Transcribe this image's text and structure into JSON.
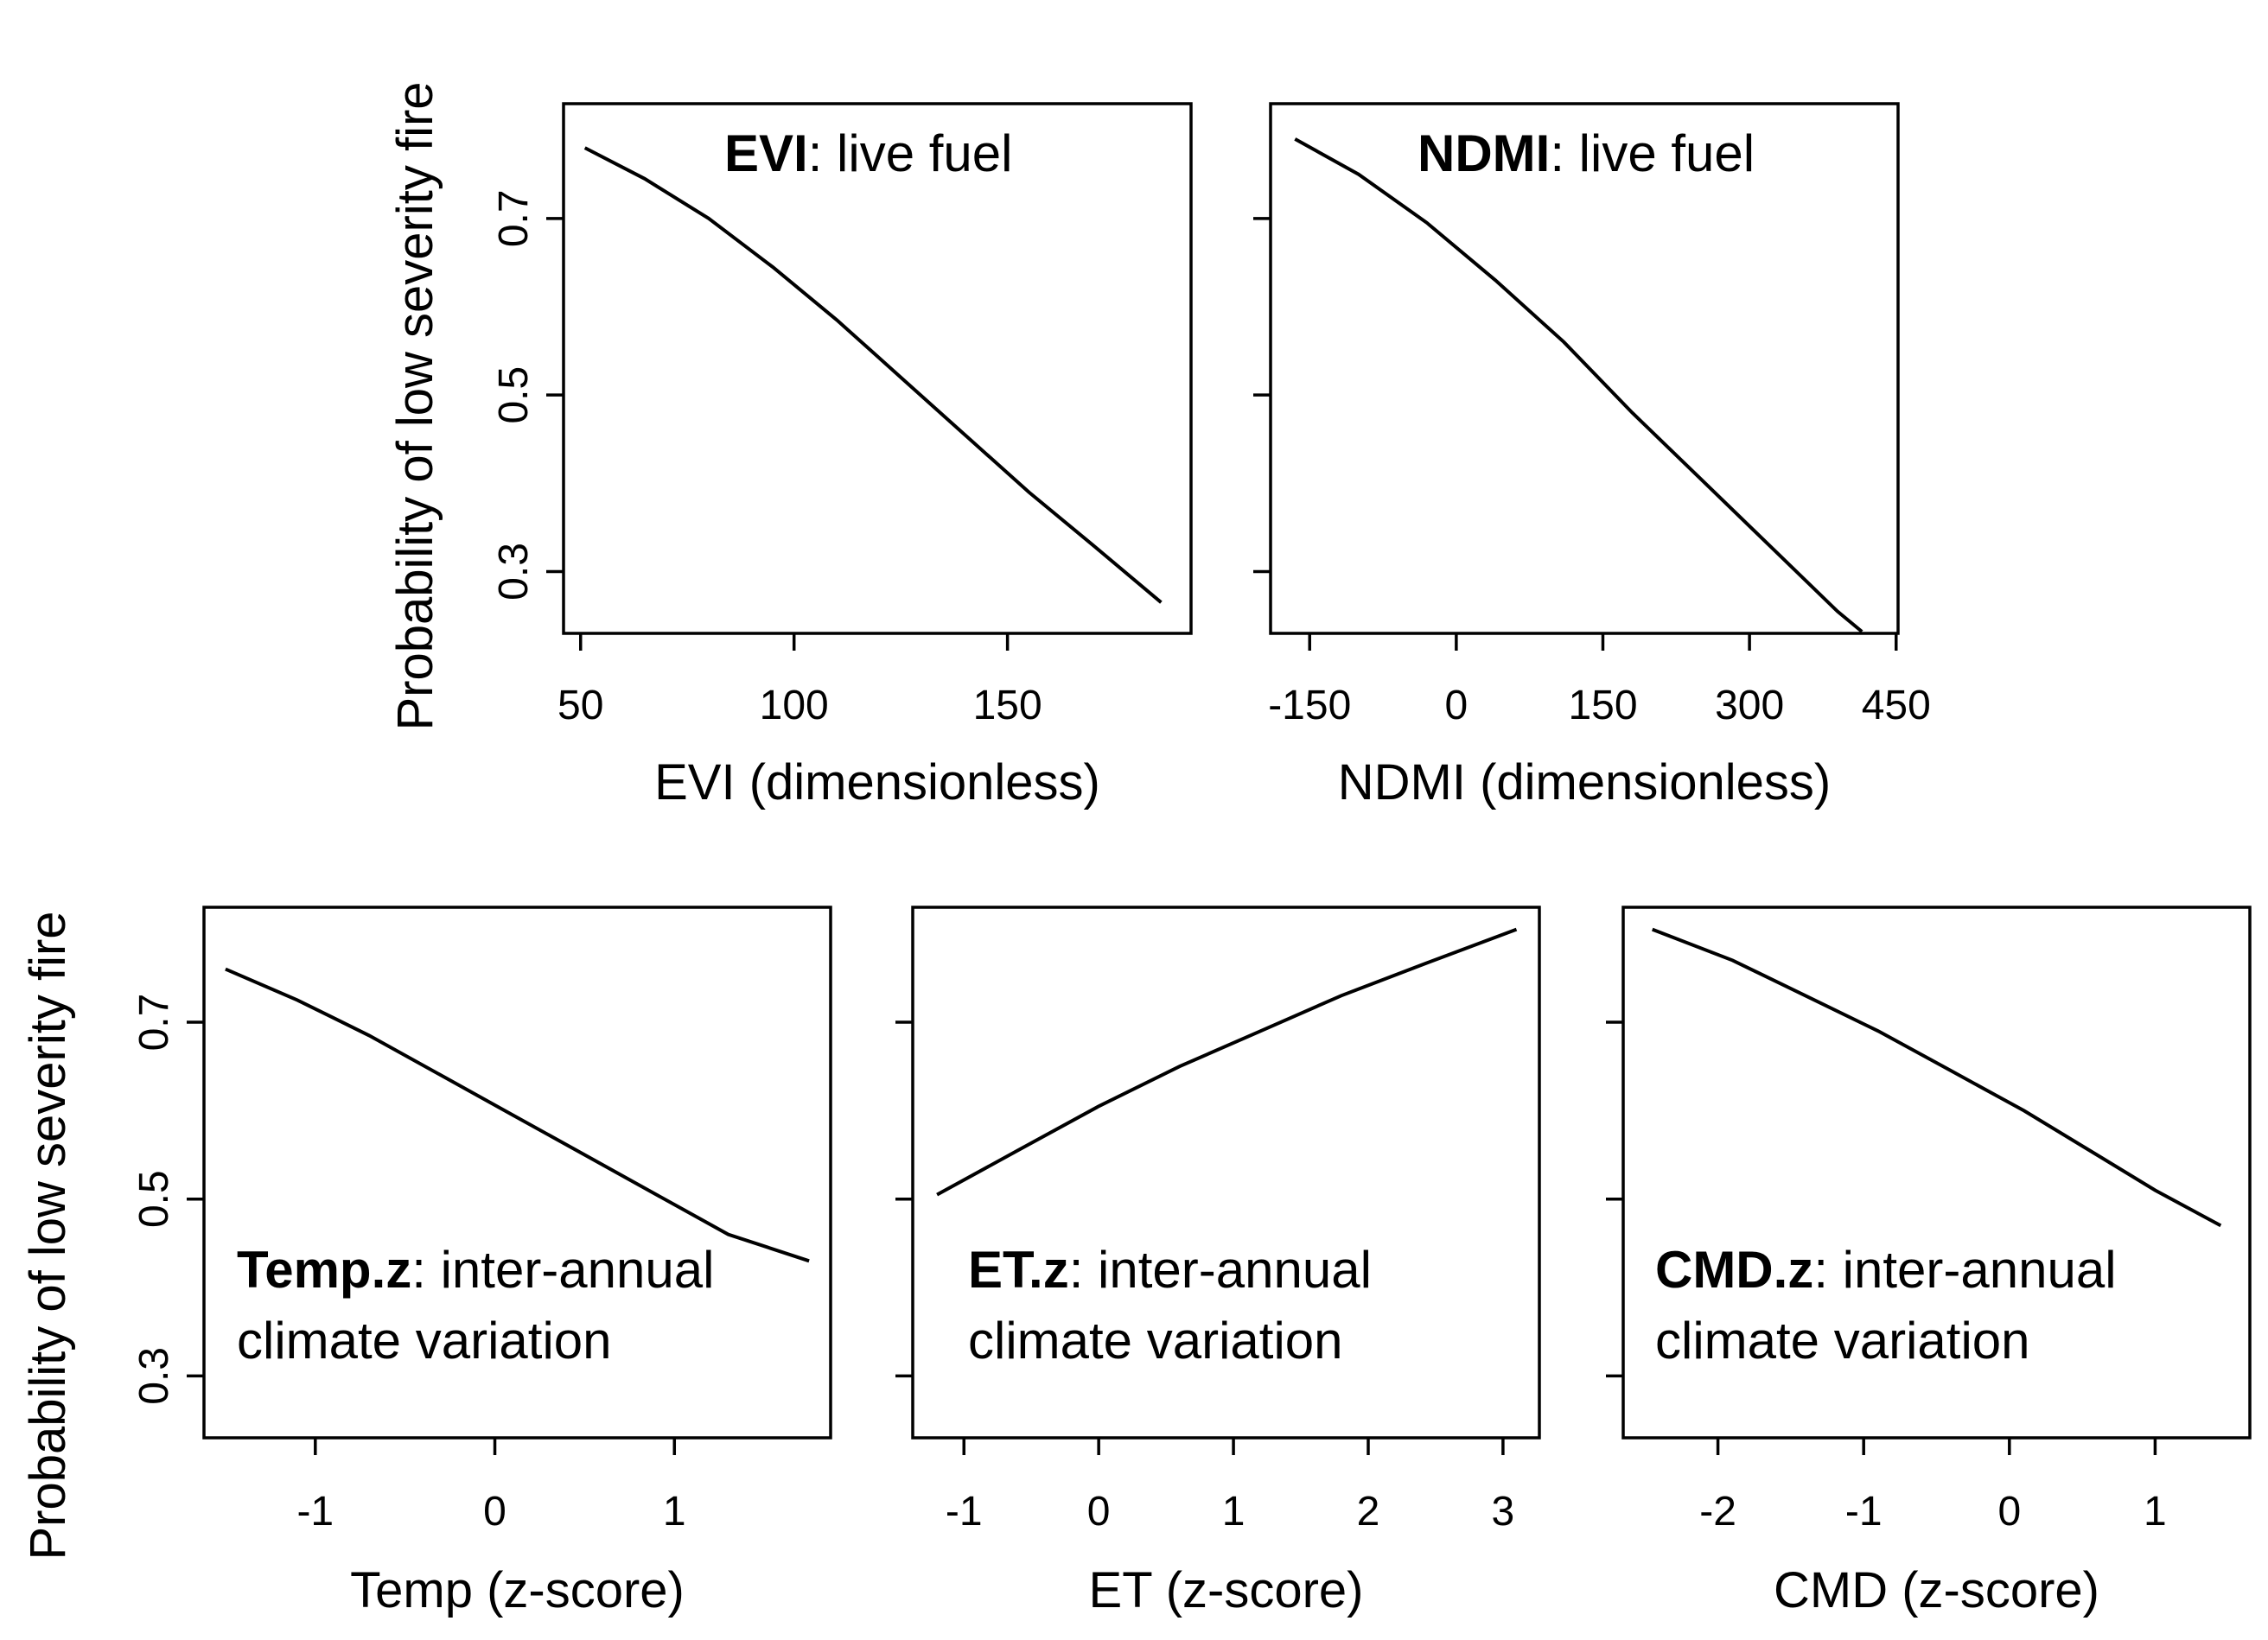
{
  "ylabel": "Probability of low severity fire",
  "chart_data": [
    {
      "type": "line",
      "panel": "EVI",
      "annotation_bold": "EVI",
      "annotation_rest": ": live fuel",
      "xlabel": "EVI (dimensionless)",
      "ylabel": "Probability of low severity fire",
      "xlim": [
        46,
        193
      ],
      "ylim": [
        0.23,
        0.83
      ],
      "xticks": [
        50,
        100,
        150
      ],
      "xtick_labels": [
        "50",
        "100",
        "150"
      ],
      "yticks": [
        0.3,
        0.5,
        0.7
      ],
      "ytick_labels": [
        "0.3",
        "0.5",
        "0.7"
      ],
      "x": [
        51,
        65,
        80,
        95,
        110,
        125,
        140,
        155,
        170,
        186
      ],
      "y": [
        0.78,
        0.745,
        0.7,
        0.645,
        0.585,
        0.52,
        0.455,
        0.39,
        0.33,
        0.265
      ]
    },
    {
      "type": "line",
      "panel": "NDMI",
      "annotation_bold": "NDMI",
      "annotation_rest": ": live fuel",
      "xlabel": "NDMI (dimensionless)",
      "ylabel": "",
      "xlim": [
        -190,
        452
      ],
      "ylim": [
        0.23,
        0.83
      ],
      "xticks": [
        -150,
        0,
        150,
        300,
        450
      ],
      "xtick_labels": [
        "-150",
        "0",
        "150",
        "300",
        "450"
      ],
      "yticks": [
        0.3,
        0.5,
        0.7
      ],
      "ytick_labels": [
        "",
        "",
        ""
      ],
      "x": [
        -165,
        -100,
        -30,
        40,
        110,
        180,
        250,
        320,
        390,
        415
      ],
      "y": [
        0.79,
        0.75,
        0.695,
        0.63,
        0.56,
        0.48,
        0.405,
        0.33,
        0.255,
        0.232
      ]
    },
    {
      "type": "line",
      "panel": "Temp.z",
      "annotation_bold": "Temp.z",
      "annotation_rest": ": inter-annual",
      "annotation_line2": "climate variation",
      "xlabel": "Temp (z-score)",
      "ylabel": "Probability of low severity fire",
      "xlim": [
        -1.62,
        1.87
      ],
      "ylim": [
        0.23,
        0.83
      ],
      "xticks": [
        -1,
        0,
        1
      ],
      "xtick_labels": [
        "-1",
        "0",
        "1"
      ],
      "yticks": [
        0.3,
        0.5,
        0.7
      ],
      "ytick_labels": [
        "0.3",
        "0.5",
        "0.7"
      ],
      "x": [
        -1.5,
        -1.1,
        -0.7,
        -0.3,
        0.1,
        0.5,
        0.9,
        1.3,
        1.75
      ],
      "y": [
        0.76,
        0.725,
        0.685,
        0.64,
        0.595,
        0.55,
        0.505,
        0.46,
        0.43
      ]
    },
    {
      "type": "line",
      "panel": "ET.z",
      "annotation_bold": "ET.z",
      "annotation_rest": ": inter-annual",
      "annotation_line2": "climate variation",
      "xlabel": "ET (z-score)",
      "ylabel": "",
      "xlim": [
        -1.38,
        3.27
      ],
      "ylim": [
        0.23,
        0.83
      ],
      "xticks": [
        -1,
        0,
        1,
        2,
        3
      ],
      "xtick_labels": [
        "-1",
        "0",
        "1",
        "2",
        "3"
      ],
      "yticks": [
        0.3,
        0.5,
        0.7
      ],
      "ytick_labels": [
        "",
        "",
        ""
      ],
      "x": [
        -1.2,
        -0.6,
        0,
        0.6,
        1.2,
        1.8,
        2.4,
        3.1
      ],
      "y": [
        0.505,
        0.555,
        0.605,
        0.65,
        0.69,
        0.73,
        0.765,
        0.805
      ]
    },
    {
      "type": "line",
      "panel": "CMD.z",
      "annotation_bold": "CMD.z",
      "annotation_rest": ": inter-annual",
      "annotation_line2": "climate variation",
      "xlabel": "CMD (z-score)",
      "ylabel": "",
      "xlim": [
        -2.65,
        1.65
      ],
      "ylim": [
        0.23,
        0.83
      ],
      "xticks": [
        -2,
        -1,
        0,
        1
      ],
      "xtick_labels": [
        "-2",
        "-1",
        "0",
        "1"
      ],
      "yticks": [
        0.3,
        0.5,
        0.7
      ],
      "ytick_labels": [
        "",
        "",
        ""
      ],
      "x": [
        -2.45,
        -1.9,
        -1.4,
        -0.9,
        -0.4,
        0.1,
        0.6,
        1.0,
        1.45
      ],
      "y": [
        0.805,
        0.77,
        0.73,
        0.69,
        0.645,
        0.6,
        0.55,
        0.51,
        0.47
      ]
    }
  ]
}
